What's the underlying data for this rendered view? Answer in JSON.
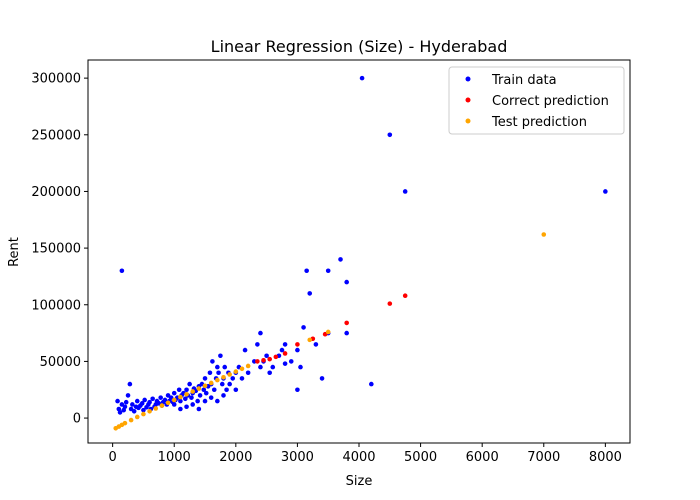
{
  "chart_data": {
    "type": "scatter",
    "title": "Linear Regression (Size) - Hyderabad",
    "xlabel": "Size",
    "ylabel": "Rent",
    "xlim": [
      -400,
      8400
    ],
    "ylim": [
      -22000,
      316000
    ],
    "xticks": [
      0,
      1000,
      2000,
      3000,
      4000,
      5000,
      6000,
      7000,
      8000
    ],
    "yticks": [
      0,
      50000,
      100000,
      150000,
      200000,
      250000,
      300000
    ],
    "grid": false,
    "legend_position": "top-right",
    "series": [
      {
        "name": "Train data",
        "color": "#0000ff",
        "points": [
          [
            80,
            15000
          ],
          [
            100,
            8000
          ],
          [
            120,
            5000
          ],
          [
            150,
            12000
          ],
          [
            150,
            130000
          ],
          [
            180,
            7000
          ],
          [
            200,
            10000
          ],
          [
            220,
            14000
          ],
          [
            250,
            20000
          ],
          [
            280,
            30000
          ],
          [
            300,
            8000
          ],
          [
            320,
            12000
          ],
          [
            350,
            6000
          ],
          [
            380,
            10000
          ],
          [
            400,
            15000
          ],
          [
            420,
            9000
          ],
          [
            450,
            11000
          ],
          [
            480,
            13000
          ],
          [
            500,
            7000
          ],
          [
            520,
            16000
          ],
          [
            550,
            9500
          ],
          [
            580,
            12000
          ],
          [
            600,
            14000
          ],
          [
            620,
            8000
          ],
          [
            650,
            17000
          ],
          [
            680,
            10000
          ],
          [
            700,
            12000
          ],
          [
            720,
            15000
          ],
          [
            750,
            13000
          ],
          [
            780,
            18000
          ],
          [
            800,
            11000
          ],
          [
            820,
            14000
          ],
          [
            850,
            16000
          ],
          [
            880,
            12000
          ],
          [
            900,
            20000
          ],
          [
            920,
            15000
          ],
          [
            950,
            18000
          ],
          [
            980,
            14000
          ],
          [
            1000,
            22000
          ],
          [
            1000,
            12000
          ],
          [
            1020,
            16000
          ],
          [
            1050,
            18000
          ],
          [
            1080,
            25000
          ],
          [
            1100,
            15000
          ],
          [
            1100,
            8000
          ],
          [
            1120,
            20000
          ],
          [
            1150,
            22000
          ],
          [
            1180,
            17000
          ],
          [
            1200,
            25000
          ],
          [
            1200,
            10000
          ],
          [
            1220,
            20000
          ],
          [
            1250,
            30000
          ],
          [
            1280,
            18000
          ],
          [
            1300,
            22000
          ],
          [
            1300,
            12000
          ],
          [
            1320,
            26000
          ],
          [
            1350,
            24000
          ],
          [
            1380,
            15000
          ],
          [
            1400,
            28000
          ],
          [
            1400,
            8000
          ],
          [
            1420,
            20000
          ],
          [
            1450,
            30000
          ],
          [
            1480,
            25000
          ],
          [
            1500,
            35000
          ],
          [
            1500,
            15000
          ],
          [
            1520,
            22000
          ],
          [
            1550,
            28000
          ],
          [
            1580,
            40000
          ],
          [
            1600,
            30000
          ],
          [
            1600,
            18000
          ],
          [
            1620,
            50000
          ],
          [
            1650,
            25000
          ],
          [
            1680,
            35000
          ],
          [
            1700,
            45000
          ],
          [
            1700,
            15000
          ],
          [
            1720,
            40000
          ],
          [
            1750,
            55000
          ],
          [
            1780,
            30000
          ],
          [
            1800,
            35000
          ],
          [
            1800,
            20000
          ],
          [
            1820,
            45000
          ],
          [
            1850,
            25000
          ],
          [
            1880,
            40000
          ],
          [
            1900,
            30000
          ],
          [
            1950,
            35000
          ],
          [
            2000,
            40000
          ],
          [
            2000,
            25000
          ],
          [
            2050,
            45000
          ],
          [
            2100,
            35000
          ],
          [
            2150,
            60000
          ],
          [
            2200,
            40000
          ],
          [
            2300,
            50000
          ],
          [
            2350,
            65000
          ],
          [
            2400,
            75000
          ],
          [
            2400,
            45000
          ],
          [
            2450,
            50000
          ],
          [
            2500,
            55000
          ],
          [
            2550,
            40000
          ],
          [
            2600,
            45000
          ],
          [
            2700,
            55000
          ],
          [
            2750,
            60000
          ],
          [
            2800,
            65000
          ],
          [
            2800,
            48000
          ],
          [
            2900,
            50000
          ],
          [
            3000,
            25000
          ],
          [
            3000,
            60000
          ],
          [
            3050,
            45000
          ],
          [
            3100,
            80000
          ],
          [
            3150,
            130000
          ],
          [
            3200,
            110000
          ],
          [
            3300,
            65000
          ],
          [
            3400,
            35000
          ],
          [
            3500,
            130000
          ],
          [
            3500,
            75000
          ],
          [
            3700,
            140000
          ],
          [
            3800,
            120000
          ],
          [
            3800,
            75000
          ],
          [
            4050,
            300000
          ],
          [
            4200,
            30000
          ],
          [
            4500,
            250000
          ],
          [
            4750,
            200000
          ],
          [
            8000,
            200000
          ]
        ]
      },
      {
        "name": "Correct prediction",
        "color": "#ff0000",
        "points": [
          [
            2350,
            50000
          ],
          [
            2450,
            51000
          ],
          [
            2550,
            52000
          ],
          [
            2650,
            54000
          ],
          [
            2800,
            57000
          ],
          [
            3000,
            65000
          ],
          [
            3250,
            70000
          ],
          [
            3450,
            74000
          ],
          [
            3800,
            84000
          ],
          [
            4500,
            101000
          ],
          [
            4750,
            108000
          ]
        ]
      },
      {
        "name": "Test prediction",
        "color": "#ffa500",
        "points": [
          [
            50,
            -9000
          ],
          [
            100,
            -7500
          ],
          [
            150,
            -6000
          ],
          [
            200,
            -4500
          ],
          [
            300,
            -1800
          ],
          [
            400,
            1000
          ],
          [
            500,
            3500
          ],
          [
            600,
            6000
          ],
          [
            700,
            8500
          ],
          [
            800,
            11000
          ],
          [
            900,
            13500
          ],
          [
            1000,
            16000
          ],
          [
            1100,
            18500
          ],
          [
            1200,
            21000
          ],
          [
            1300,
            23500
          ],
          [
            1400,
            26000
          ],
          [
            1500,
            28500
          ],
          [
            1600,
            31000
          ],
          [
            1700,
            33500
          ],
          [
            1800,
            36000
          ],
          [
            1900,
            38500
          ],
          [
            2000,
            41000
          ],
          [
            2100,
            43500
          ],
          [
            2200,
            46000
          ],
          [
            3200,
            69000
          ],
          [
            3500,
            76000
          ],
          [
            7000,
            162000
          ]
        ]
      }
    ]
  }
}
